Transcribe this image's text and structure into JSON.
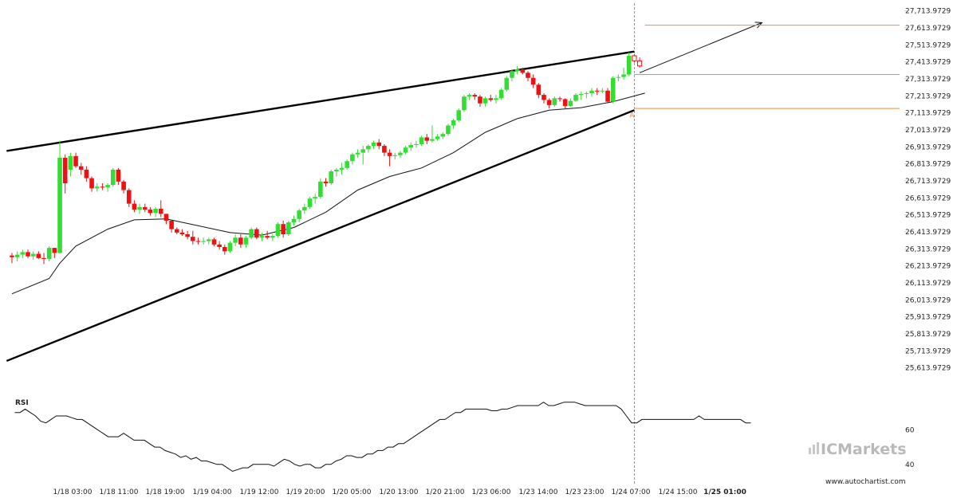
{
  "chart_data": [
    {
      "type": "candlestick",
      "title": "",
      "y_ticks": [
        "27,713.9729",
        "27,613.9729",
        "27,513.9729",
        "27,413.9729",
        "27,313.9729",
        "27,213.9729",
        "27,113.9729",
        "27,013.9729",
        "26,913.9729",
        "26,813.9729",
        "26,713.9729",
        "26,613.9729",
        "26,513.9729",
        "26,413.9729",
        "26,313.9729",
        "26,213.9729",
        "26,113.9729",
        "26,013.9729",
        "25,913.9729",
        "25,813.9729",
        "25,713.9729",
        "25,613.9729"
      ],
      "ylim": [
        25575,
        27750
      ],
      "x_ticks": [
        "1/18 03:00",
        "1/18 11:00",
        "1/18 19:00",
        "1/19 04:00",
        "1/19 12:00",
        "1/19 20:00",
        "1/20 05:00",
        "1/20 13:00",
        "1/20 21:00",
        "1/23 06:00",
        "1/23 14:00",
        "1/23 23:00",
        "1/24 07:00",
        "1/24 15:00",
        "1/25 01:00"
      ],
      "highlighted_x_tick": "1/25 01:00",
      "candles": [
        {
          "o": 26275,
          "h": 26290,
          "l": 26230,
          "c": 26265
        },
        {
          "o": 26265,
          "h": 26300,
          "l": 26240,
          "c": 26280
        },
        {
          "o": 26280,
          "h": 26310,
          "l": 26260,
          "c": 26295
        },
        {
          "o": 26295,
          "h": 26310,
          "l": 26260,
          "c": 26270
        },
        {
          "o": 26270,
          "h": 26300,
          "l": 26250,
          "c": 26285
        },
        {
          "o": 26285,
          "h": 26300,
          "l": 26255,
          "c": 26260
        },
        {
          "o": 26260,
          "h": 26290,
          "l": 26225,
          "c": 26255
        },
        {
          "o": 26255,
          "h": 26330,
          "l": 26240,
          "c": 26320
        },
        {
          "o": 26320,
          "h": 26320,
          "l": 26260,
          "c": 26290
        },
        {
          "o": 26290,
          "h": 26950,
          "l": 26285,
          "c": 26850
        },
        {
          "o": 26850,
          "h": 26870,
          "l": 26640,
          "c": 26700
        },
        {
          "o": 26780,
          "h": 26880,
          "l": 26740,
          "c": 26860
        },
        {
          "o": 26860,
          "h": 26880,
          "l": 26790,
          "c": 26800
        },
        {
          "o": 26800,
          "h": 26820,
          "l": 26750,
          "c": 26780
        },
        {
          "o": 26780,
          "h": 26800,
          "l": 26710,
          "c": 26730
        },
        {
          "o": 26730,
          "h": 26740,
          "l": 26650,
          "c": 26670
        },
        {
          "o": 26670,
          "h": 26700,
          "l": 26650,
          "c": 26680
        },
        {
          "o": 26680,
          "h": 26700,
          "l": 26660,
          "c": 26675
        },
        {
          "o": 26675,
          "h": 26700,
          "l": 26650,
          "c": 26690
        },
        {
          "o": 26690,
          "h": 26790,
          "l": 26680,
          "c": 26780
        },
        {
          "o": 26780,
          "h": 26790,
          "l": 26690,
          "c": 26710
        },
        {
          "o": 26710,
          "h": 26720,
          "l": 26640,
          "c": 26660
        },
        {
          "o": 26660,
          "h": 26670,
          "l": 26560,
          "c": 26580
        },
        {
          "o": 26580,
          "h": 26600,
          "l": 26530,
          "c": 26545
        },
        {
          "o": 26545,
          "h": 26580,
          "l": 26520,
          "c": 26560
        },
        {
          "o": 26560,
          "h": 26580,
          "l": 26530,
          "c": 26545
        },
        {
          "o": 26545,
          "h": 26560,
          "l": 26510,
          "c": 26525
        },
        {
          "o": 26525,
          "h": 26560,
          "l": 26500,
          "c": 26550
        },
        {
          "o": 26550,
          "h": 26600,
          "l": 26500,
          "c": 26520
        },
        {
          "o": 26520,
          "h": 26520,
          "l": 26460,
          "c": 26480
        },
        {
          "o": 26480,
          "h": 26480,
          "l": 26410,
          "c": 26430
        },
        {
          "o": 26430,
          "h": 26440,
          "l": 26400,
          "c": 26410
        },
        {
          "o": 26410,
          "h": 26430,
          "l": 26390,
          "c": 26400
        },
        {
          "o": 26400,
          "h": 26420,
          "l": 26370,
          "c": 26385
        },
        {
          "o": 26385,
          "h": 26420,
          "l": 26340,
          "c": 26360
        },
        {
          "o": 26360,
          "h": 26380,
          "l": 26340,
          "c": 26355
        },
        {
          "o": 26355,
          "h": 26380,
          "l": 26340,
          "c": 26360
        },
        {
          "o": 26360,
          "h": 26380,
          "l": 26340,
          "c": 26370
        },
        {
          "o": 26370,
          "h": 26380,
          "l": 26330,
          "c": 26340
        },
        {
          "o": 26340,
          "h": 26360,
          "l": 26310,
          "c": 26325
        },
        {
          "o": 26325,
          "h": 26340,
          "l": 26280,
          "c": 26300
        },
        {
          "o": 26300,
          "h": 26360,
          "l": 26290,
          "c": 26350
        },
        {
          "o": 26350,
          "h": 26400,
          "l": 26330,
          "c": 26380
        },
        {
          "o": 26380,
          "h": 26400,
          "l": 26320,
          "c": 26340
        },
        {
          "o": 26340,
          "h": 26390,
          "l": 26320,
          "c": 26380
        },
        {
          "o": 26380,
          "h": 26440,
          "l": 26370,
          "c": 26430
        },
        {
          "o": 26430,
          "h": 26440,
          "l": 26370,
          "c": 26380
        },
        {
          "o": 26380,
          "h": 26410,
          "l": 26360,
          "c": 26390
        },
        {
          "o": 26390,
          "h": 26420,
          "l": 26370,
          "c": 26380
        },
        {
          "o": 26380,
          "h": 26400,
          "l": 26360,
          "c": 26390
        },
        {
          "o": 26390,
          "h": 26470,
          "l": 26380,
          "c": 26460
        },
        {
          "o": 26460,
          "h": 26480,
          "l": 26380,
          "c": 26400
        },
        {
          "o": 26400,
          "h": 26480,
          "l": 26390,
          "c": 26470
        },
        {
          "o": 26470,
          "h": 26510,
          "l": 26450,
          "c": 26490
        },
        {
          "o": 26490,
          "h": 26550,
          "l": 26470,
          "c": 26540
        },
        {
          "o": 26540,
          "h": 26580,
          "l": 26520,
          "c": 26560
        },
        {
          "o": 26560,
          "h": 26620,
          "l": 26550,
          "c": 26610
        },
        {
          "o": 26610,
          "h": 26640,
          "l": 26580,
          "c": 26620
        },
        {
          "o": 26620,
          "h": 26730,
          "l": 26610,
          "c": 26710
        },
        {
          "o": 26710,
          "h": 26730,
          "l": 26680,
          "c": 26700
        },
        {
          "o": 26700,
          "h": 26780,
          "l": 26690,
          "c": 26770
        },
        {
          "o": 26770,
          "h": 26790,
          "l": 26740,
          "c": 26780
        },
        {
          "o": 26780,
          "h": 26820,
          "l": 26750,
          "c": 26790
        },
        {
          "o": 26790,
          "h": 26840,
          "l": 26780,
          "c": 26830
        },
        {
          "o": 26830,
          "h": 26880,
          "l": 26810,
          "c": 26870
        },
        {
          "o": 26870,
          "h": 26900,
          "l": 26850,
          "c": 26880
        },
        {
          "o": 26880,
          "h": 26920,
          "l": 26810,
          "c": 26900
        },
        {
          "o": 26900,
          "h": 26930,
          "l": 26880,
          "c": 26920
        },
        {
          "o": 26920,
          "h": 26950,
          "l": 26900,
          "c": 26940
        },
        {
          "o": 26940,
          "h": 26960,
          "l": 26900,
          "c": 26920
        },
        {
          "o": 26920,
          "h": 26930,
          "l": 26860,
          "c": 26880
        },
        {
          "o": 26880,
          "h": 26900,
          "l": 26800,
          "c": 26860
        },
        {
          "o": 26860,
          "h": 26880,
          "l": 26840,
          "c": 26865
        },
        {
          "o": 26865,
          "h": 26890,
          "l": 26850,
          "c": 26880
        },
        {
          "o": 26880,
          "h": 26920,
          "l": 26870,
          "c": 26910
        },
        {
          "o": 26910,
          "h": 26940,
          "l": 26890,
          "c": 26925
        },
        {
          "o": 26925,
          "h": 26950,
          "l": 26910,
          "c": 26930
        },
        {
          "o": 26930,
          "h": 26980,
          "l": 26920,
          "c": 26970
        },
        {
          "o": 26970,
          "h": 26990,
          "l": 26930,
          "c": 26950
        },
        {
          "o": 26950,
          "h": 27040,
          "l": 26940,
          "c": 26960
        },
        {
          "o": 26960,
          "h": 26990,
          "l": 26950,
          "c": 26975
        },
        {
          "o": 26975,
          "h": 27000,
          "l": 26960,
          "c": 26990
        },
        {
          "o": 26990,
          "h": 27050,
          "l": 26980,
          "c": 27040
        },
        {
          "o": 27040,
          "h": 27080,
          "l": 27020,
          "c": 27070
        },
        {
          "o": 27070,
          "h": 27140,
          "l": 27060,
          "c": 27130
        },
        {
          "o": 27130,
          "h": 27220,
          "l": 27120,
          "c": 27210
        },
        {
          "o": 27210,
          "h": 27230,
          "l": 27190,
          "c": 27220
        },
        {
          "o": 27220,
          "h": 27230,
          "l": 27190,
          "c": 27210
        },
        {
          "o": 27210,
          "h": 27220,
          "l": 27150,
          "c": 27170
        },
        {
          "o": 27170,
          "h": 27210,
          "l": 27150,
          "c": 27200
        },
        {
          "o": 27200,
          "h": 27220,
          "l": 27180,
          "c": 27190
        },
        {
          "o": 27190,
          "h": 27220,
          "l": 27170,
          "c": 27200
        },
        {
          "o": 27200,
          "h": 27260,
          "l": 27190,
          "c": 27250
        },
        {
          "o": 27250,
          "h": 27330,
          "l": 27240,
          "c": 27320
        },
        {
          "o": 27320,
          "h": 27370,
          "l": 27300,
          "c": 27360
        },
        {
          "o": 27360,
          "h": 27390,
          "l": 27340,
          "c": 27370
        },
        {
          "o": 27370,
          "h": 27380,
          "l": 27340,
          "c": 27350
        },
        {
          "o": 27350,
          "h": 27360,
          "l": 27300,
          "c": 27320
        },
        {
          "o": 27320,
          "h": 27340,
          "l": 27260,
          "c": 27280
        },
        {
          "o": 27280,
          "h": 27290,
          "l": 27200,
          "c": 27220
        },
        {
          "o": 27220,
          "h": 27230,
          "l": 27170,
          "c": 27190
        },
        {
          "o": 27190,
          "h": 27200,
          "l": 27140,
          "c": 27160
        },
        {
          "o": 27160,
          "h": 27210,
          "l": 27150,
          "c": 27200
        },
        {
          "o": 27200,
          "h": 27210,
          "l": 27180,
          "c": 27195
        },
        {
          "o": 27195,
          "h": 27200,
          "l": 27140,
          "c": 27155
        },
        {
          "o": 27155,
          "h": 27200,
          "l": 27150,
          "c": 27185
        },
        {
          "o": 27185,
          "h": 27230,
          "l": 27180,
          "c": 27220
        },
        {
          "o": 27220,
          "h": 27240,
          "l": 27190,
          "c": 27225
        },
        {
          "o": 27225,
          "h": 27240,
          "l": 27200,
          "c": 27230
        },
        {
          "o": 27230,
          "h": 27260,
          "l": 27210,
          "c": 27245
        },
        {
          "o": 27245,
          "h": 27260,
          "l": 27220,
          "c": 27240
        },
        {
          "o": 27240,
          "h": 27260,
          "l": 27230,
          "c": 27245
        },
        {
          "o": 27245,
          "h": 27260,
          "l": 27170,
          "c": 27180
        },
        {
          "o": 27180,
          "h": 27330,
          "l": 27170,
          "c": 27320
        },
        {
          "o": 27320,
          "h": 27340,
          "l": 27300,
          "c": 27325
        },
        {
          "o": 27325,
          "h": 27380,
          "l": 27310,
          "c": 27340
        },
        {
          "o": 27340,
          "h": 27470,
          "l": 27330,
          "c": 27450
        },
        {
          "o": 27450,
          "h": 27460,
          "l": 27410,
          "c": 27420
        },
        {
          "o": 27420,
          "h": 27440,
          "l": 27380,
          "c": 27390
        }
      ],
      "candle_colors": {
        "up": "#33dd33",
        "down": "#ee1111"
      },
      "moving_average": [
        {
          "i": 0,
          "v": 26050
        },
        {
          "i": 7,
          "v": 26140
        },
        {
          "i": 9,
          "v": 26230
        },
        {
          "i": 12,
          "v": 26330
        },
        {
          "i": 18,
          "v": 26430
        },
        {
          "i": 23,
          "v": 26485
        },
        {
          "i": 29,
          "v": 26490
        },
        {
          "i": 35,
          "v": 26450
        },
        {
          "i": 41,
          "v": 26410
        },
        {
          "i": 47,
          "v": 26395
        },
        {
          "i": 53,
          "v": 26440
        },
        {
          "i": 59,
          "v": 26530
        },
        {
          "i": 65,
          "v": 26660
        },
        {
          "i": 71,
          "v": 26740
        },
        {
          "i": 77,
          "v": 26790
        },
        {
          "i": 83,
          "v": 26880
        },
        {
          "i": 89,
          "v": 27000
        },
        {
          "i": 95,
          "v": 27080
        },
        {
          "i": 101,
          "v": 27130
        },
        {
          "i": 107,
          "v": 27145
        },
        {
          "i": 113,
          "v": 27180
        },
        {
          "i": 119,
          "v": 27230
        }
      ],
      "wedge_upper": [
        {
          "i": -1,
          "v": 26890
        },
        {
          "i": 117,
          "v": 27475
        }
      ],
      "wedge_lower": [
        {
          "i": -1,
          "v": 25655
        },
        {
          "i": 117,
          "v": 27130
        }
      ],
      "projection": [
        {
          "i": 118,
          "v": 27350
        },
        {
          "i": 141,
          "v": 27645
        }
      ],
      "horizontal_levels": [
        {
          "v": 27630,
          "from": 119
        },
        {
          "v": 27340,
          "from": 117
        },
        {
          "v": 27140,
          "from": 117
        }
      ],
      "level_color": "#f28a3c",
      "marker": {
        "label": "A",
        "i": 117,
        "v": 27120
      },
      "vertical_marker_index": 117
    },
    {
      "type": "line",
      "name": "RSI",
      "y_ticks": [
        60,
        40
      ],
      "ylim": [
        33,
        80
      ],
      "values": [
        70,
        70,
        72,
        70,
        68,
        65,
        64,
        66,
        68,
        68,
        68,
        67,
        66,
        66,
        64,
        62,
        60,
        58,
        56,
        56,
        56,
        58,
        56,
        54,
        54,
        54,
        52,
        50,
        50,
        48,
        47,
        46,
        44,
        45,
        43,
        44,
        42,
        42,
        41,
        40,
        40,
        38,
        36,
        37,
        38,
        38,
        40,
        40,
        40,
        40,
        39,
        41,
        43,
        42,
        40,
        39,
        40,
        40,
        38,
        38,
        40,
        40,
        42,
        43,
        45,
        45,
        44,
        44,
        46,
        46,
        48,
        48,
        50,
        50,
        52,
        52,
        54,
        56,
        58,
        60,
        62,
        64,
        66,
        66,
        68,
        70,
        70,
        72,
        72,
        72,
        72,
        72,
        71,
        71,
        72,
        72,
        73,
        74,
        74,
        74,
        74,
        74,
        76,
        74,
        74,
        75,
        76,
        76,
        76,
        75,
        74,
        74,
        74,
        74,
        74,
        74,
        74,
        72,
        68,
        64,
        64,
        66,
        66,
        66,
        66,
        66,
        66,
        66,
        66,
        66,
        66,
        66,
        68,
        66,
        66,
        66,
        66,
        66,
        66,
        66,
        66,
        64,
        64
      ]
    }
  ],
  "branding": {
    "logo_text": "ICMarkets",
    "website": "www.autochartist.com"
  }
}
